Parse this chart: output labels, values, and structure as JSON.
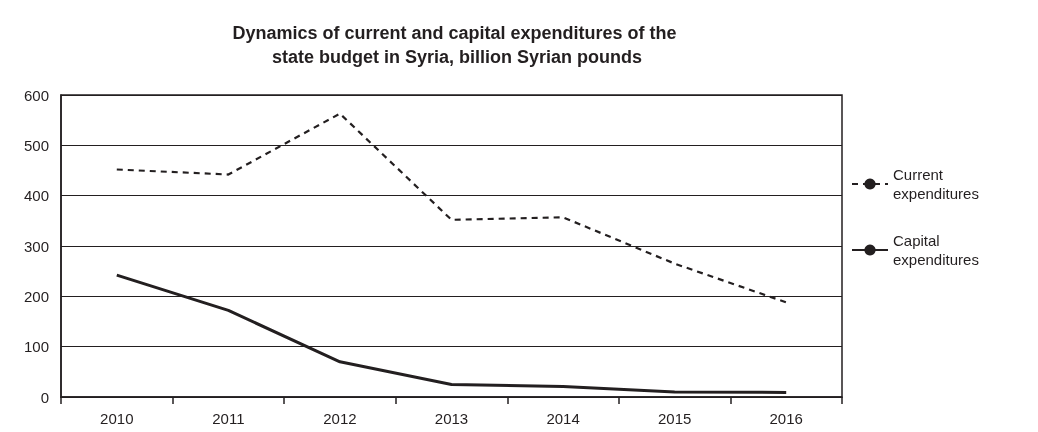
{
  "chart_data": {
    "type": "line",
    "title": "Dynamics of current and capital expenditures of the state budget in Syria, billion Syrian pounds",
    "categories": [
      "2010",
      "2011",
      "2012",
      "2013",
      "2014",
      "2015",
      "2016"
    ],
    "series": [
      {
        "name": "Current expenditures",
        "color": "#231f20",
        "line_style": "dashed",
        "values": [
          452,
          442,
          563,
          352,
          357,
          265,
          188
        ]
      },
      {
        "name": "Capital expenditures",
        "color": "#231f20",
        "line_style": "solid",
        "values": [
          242,
          172,
          70,
          25,
          21,
          10,
          9
        ]
      }
    ],
    "ylim": [
      0,
      600
    ],
    "yticks": [
      0,
      100,
      200,
      300,
      400,
      500,
      600
    ],
    "grid": "y",
    "legend": "right",
    "marker": "none"
  }
}
